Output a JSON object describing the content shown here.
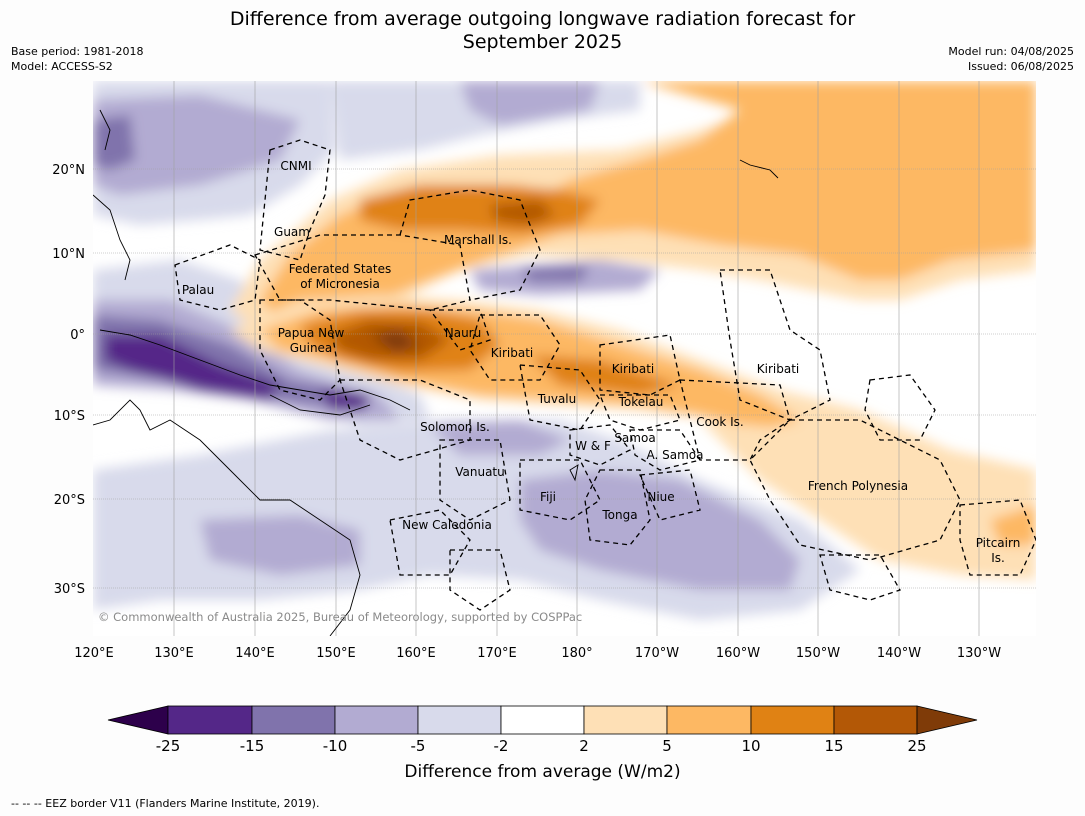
{
  "header": {
    "title_line1": "Difference from average outgoing longwave radiation forecast for",
    "title_line2": "September 2025",
    "base_period": "Base period: 1981-2018",
    "model": "Model: ACCESS-S2",
    "model_run": "Model run: 04/08/2025",
    "issued": "Issued: 06/08/2025"
  },
  "map": {
    "lon_labels": [
      "120°E",
      "130°E",
      "140°E",
      "150°E",
      "160°E",
      "170°E",
      "180°",
      "170°W",
      "160°W",
      "150°W",
      "140°W",
      "130°W"
    ],
    "lat_labels": [
      "20°N",
      "10°N",
      "0°",
      "10°S",
      "20°S",
      "30°S"
    ],
    "places": {
      "cnmi": "CNMI",
      "guam": "Guam",
      "marshall": "Marshall Is.",
      "fsm_line1": "Federated States",
      "fsm_line2": "of Micronesia",
      "palau": "Palau",
      "png_line1": "Papua New",
      "png_line2": "Guinea",
      "nauru": "Nauru",
      "kiribati_west": "Kiribati",
      "kiribati_central": "Kiribati",
      "kiribati_east": "Kiribati",
      "tuvalu": "Tuvalu",
      "tokelau": "Tokelau",
      "solomon": "Solomon Is.",
      "wf": "W & F",
      "samoa": "Samoa",
      "asamoa": "A. Samoa",
      "cook": "Cook Is.",
      "vanuatu": "Vanuatu",
      "fiji": "Fiji",
      "niue": "Niue",
      "tonga": "Tonga",
      "newcal": "New Caledonia",
      "frpoly": "French Polynesia",
      "pitcairn_line1": "Pitcairn",
      "pitcairn_line2": "Is."
    },
    "credit": "© Commonwealth of Australia 2025, Bureau of Meteorology, supported by COSPPac"
  },
  "colorbar": {
    "ticks": [
      "-25",
      "-15",
      "-10",
      "-5",
      "-2",
      "2",
      "5",
      "10",
      "15",
      "25"
    ],
    "colors": [
      "#2d004b",
      "#542788",
      "#8073ac",
      "#b2abd2",
      "#d8daeb",
      "#ffffff",
      "#fee0b6",
      "#fdb863",
      "#e08214",
      "#b35806",
      "#7f3b08"
    ],
    "label": "Difference from average (W/m2)"
  },
  "footnote": "--  --  -- EEZ border V11 (Flanders Marine Institute, 2019)."
}
